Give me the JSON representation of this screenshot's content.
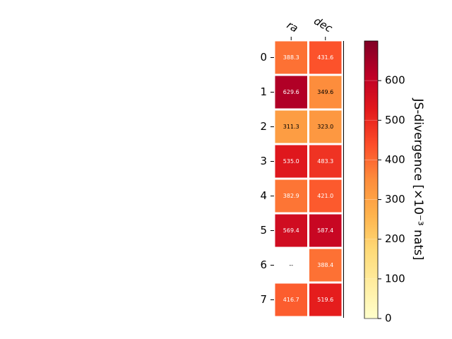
{
  "chart_data": {
    "type": "heatmap",
    "columns": [
      "ra",
      "dec"
    ],
    "rows": [
      "0",
      "1",
      "2",
      "3",
      "4",
      "5",
      "6",
      "7"
    ],
    "values": [
      [
        388.3,
        431.6
      ],
      [
        629.6,
        349.6
      ],
      [
        311.3,
        323.0
      ],
      [
        535.0,
        483.3
      ],
      [
        382.9,
        421.0
      ],
      [
        569.4,
        587.4
      ],
      [
        null,
        388.4
      ],
      [
        416.7,
        519.6
      ]
    ],
    "cell_labels": [
      [
        "388.3",
        "431.6"
      ],
      [
        "629.6",
        "349.6"
      ],
      [
        "311.3",
        "323.0"
      ],
      [
        "535.0",
        "483.3"
      ],
      [
        "382.9",
        "421.0"
      ],
      [
        "569.4",
        "587.4"
      ],
      [
        "--",
        "388.4"
      ],
      [
        "416.7",
        "519.6"
      ]
    ],
    "colormap": "YlOrRd",
    "missing_label": "--",
    "colorbar": {
      "label": "JS-divergence [×10⁻³ nats]",
      "range": [
        0,
        700
      ],
      "ticks": [
        0,
        100,
        200,
        300,
        400,
        500,
        600
      ],
      "tick_labels": [
        "0",
        "100",
        "200",
        "300",
        "400",
        "500",
        "600"
      ]
    }
  }
}
